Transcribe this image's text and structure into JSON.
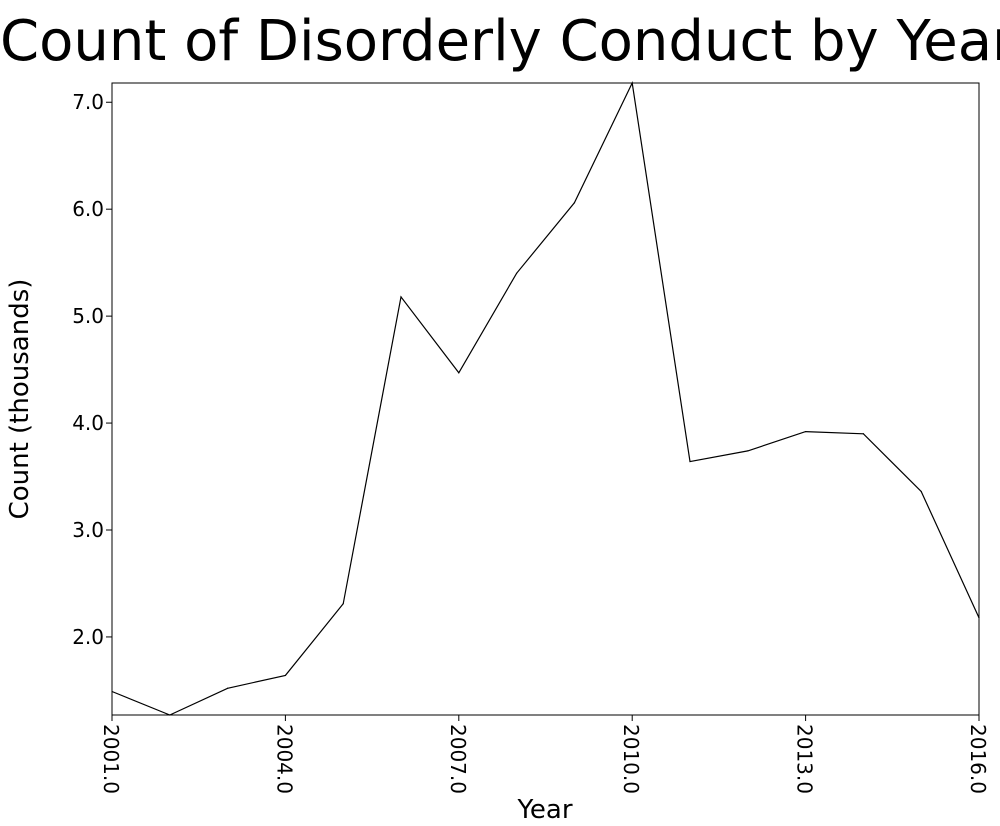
{
  "chart_data": {
    "type": "line",
    "title": "Count of Disorderly Conduct by Year",
    "xlabel": "Year",
    "ylabel": "Count (thousands)",
    "xlim": [
      2001,
      2016
    ],
    "ylim": [
      1.27,
      7.18
    ],
    "x_ticks": [
      "2001.0",
      "2004.0",
      "2007.0",
      "2010.0",
      "2013.0",
      "2016.0"
    ],
    "x_tick_values": [
      2001,
      2004,
      2007,
      2010,
      2013,
      2016
    ],
    "y_ticks": [
      "2.0",
      "3.0",
      "4.0",
      "5.0",
      "6.0",
      "7.0"
    ],
    "y_tick_values": [
      2,
      3,
      4,
      5,
      6,
      7
    ],
    "grid": false,
    "series": [
      {
        "x": [
          2001,
          2002,
          2003,
          2004,
          2005,
          2006,
          2007,
          2008,
          2009,
          2010,
          2011,
          2012,
          2013,
          2014,
          2015,
          2016
        ],
        "values": [
          1.49,
          1.27,
          1.52,
          1.64,
          2.31,
          5.18,
          4.47,
          5.4,
          6.06,
          7.18,
          3.64,
          3.74,
          3.92,
          3.9,
          3.36,
          2.18
        ],
        "color": "#000000"
      }
    ]
  }
}
